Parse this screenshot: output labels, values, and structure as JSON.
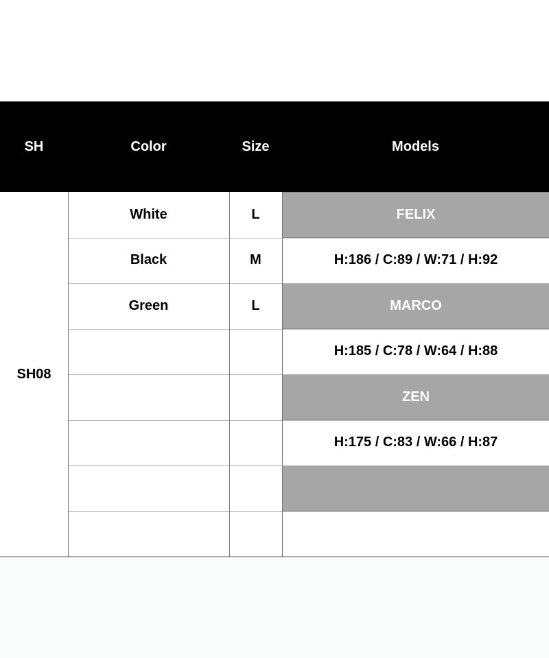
{
  "header": {
    "sh": "SH",
    "color": "Color",
    "size": "Size",
    "models": "Models"
  },
  "sh_value": "SH08",
  "rows": [
    {
      "color": "White",
      "size": "L",
      "model": "FELIX",
      "shaded": true
    },
    {
      "color": "Black",
      "size": "M",
      "model": "H:186 / C:89 / W:71 / H:92",
      "shaded": false
    },
    {
      "color": "Green",
      "size": "L",
      "model": "MARCO",
      "shaded": true
    },
    {
      "color": "",
      "size": "",
      "model": "H:185 / C:78 / W:64 / H:88",
      "shaded": false
    },
    {
      "color": "",
      "size": "",
      "model": "ZEN",
      "shaded": true
    },
    {
      "color": "",
      "size": "",
      "model": "H:175 / C:83 / W:66 / H:87",
      "shaded": false
    },
    {
      "color": "",
      "size": "",
      "model": "",
      "shaded": true
    },
    {
      "color": "",
      "size": "",
      "model": "",
      "shaded": false
    }
  ],
  "colors": {
    "header_bg": "#000000",
    "shaded_bg": "#a6a6a6"
  }
}
